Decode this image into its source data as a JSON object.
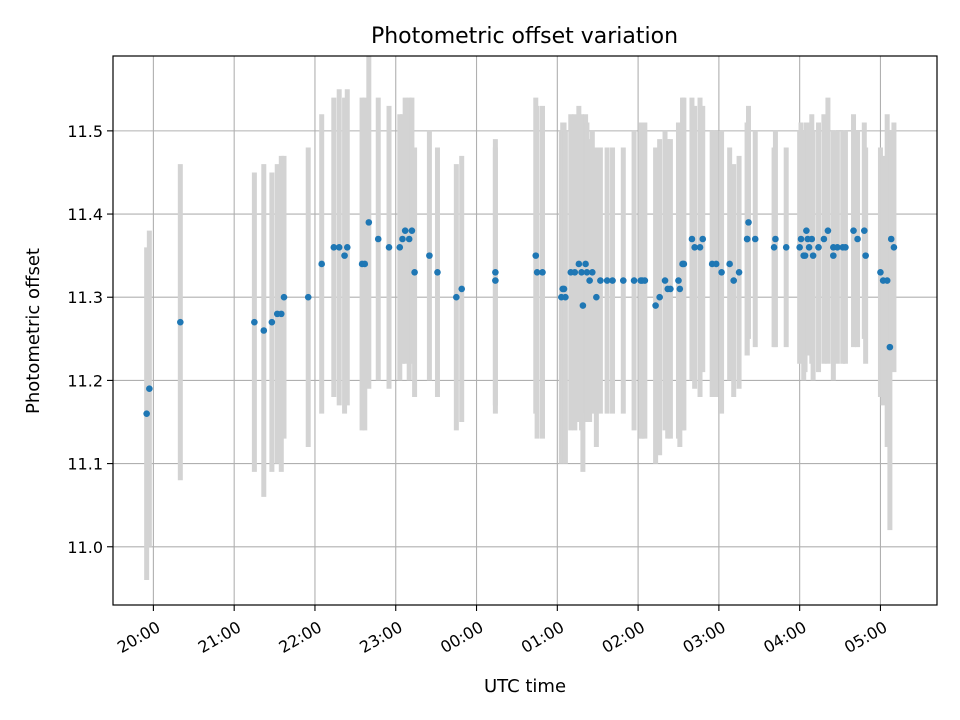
{
  "chart_data": {
    "type": "scatter",
    "title": "Photometric offset variation",
    "xlabel": "UTC time",
    "ylabel": "Photometric offset",
    "x_axis_kind": "time",
    "xlim": [
      "19:30",
      "05:42"
    ],
    "ylim": [
      10.93,
      11.59
    ],
    "grid": true,
    "x_ticks": [
      "20:00",
      "21:00",
      "22:00",
      "23:00",
      "00:00",
      "01:00",
      "02:00",
      "03:00",
      "04:00",
      "05:00"
    ],
    "y_ticks": [
      "11.0",
      "11.1",
      "11.2",
      "11.3",
      "11.4",
      "11.5"
    ],
    "colors": {
      "marker": "#1f77b4",
      "error_bar": "#d3d3d3",
      "grid": "#b0b0b0"
    },
    "series": [
      {
        "x": [
          "19:55",
          "19:57",
          "20:20",
          "21:15",
          "21:22",
          "21:28",
          "21:32",
          "21:35",
          "21:37",
          "21:55",
          "22:05",
          "22:14",
          "22:18",
          "22:22",
          "22:24",
          "22:35",
          "22:37",
          "22:40",
          "22:47",
          "22:55",
          "23:03",
          "23:05",
          "23:07",
          "23:10",
          "23:12",
          "23:14",
          "23:25",
          "23:31",
          "23:45",
          "23:49",
          "00:14",
          "00:14",
          "00:44",
          "00:45",
          "00:49",
          "01:03",
          "01:04",
          "01:05",
          "01:06",
          "01:10",
          "01:13",
          "01:16",
          "01:18",
          "01:19",
          "01:21",
          "01:22",
          "01:24",
          "01:26",
          "01:29",
          "01:32",
          "01:37",
          "01:41",
          "01:49",
          "01:57",
          "02:02",
          "02:03",
          "02:05",
          "02:13",
          "02:16",
          "02:20",
          "02:22",
          "02:24",
          "02:30",
          "02:31",
          "02:33",
          "02:34",
          "02:40",
          "02:42",
          "02:46",
          "02:48",
          "02:55",
          "02:58",
          "03:02",
          "03:08",
          "03:11",
          "03:15",
          "03:21",
          "03:21",
          "03:22",
          "03:27",
          "03:41",
          "03:42",
          "03:50",
          "04:00",
          "04:01",
          "04:03",
          "04:04",
          "04:05",
          "04:06",
          "04:07",
          "04:09",
          "04:10",
          "04:14",
          "04:18",
          "04:21",
          "04:25",
          "04:25",
          "04:28",
          "04:32",
          "04:34",
          "04:40",
          "04:43",
          "04:48",
          "04:49",
          "05:00",
          "05:02",
          "05:05",
          "05:07",
          "05:08",
          "05:10"
        ],
        "y": [
          11.16,
          11.19,
          11.27,
          11.27,
          11.26,
          11.27,
          11.28,
          11.28,
          11.3,
          11.3,
          11.34,
          11.36,
          11.36,
          11.35,
          11.36,
          11.34,
          11.34,
          11.39,
          11.37,
          11.36,
          11.36,
          11.37,
          11.38,
          11.37,
          11.38,
          11.33,
          11.35,
          11.33,
          11.3,
          11.31,
          11.32,
          11.33,
          11.35,
          11.33,
          11.33,
          11.3,
          11.31,
          11.31,
          11.3,
          11.33,
          11.33,
          11.34,
          11.33,
          11.29,
          11.34,
          11.33,
          11.32,
          11.33,
          11.3,
          11.32,
          11.32,
          11.32,
          11.32,
          11.32,
          11.32,
          11.32,
          11.32,
          11.29,
          11.3,
          11.32,
          11.31,
          11.31,
          11.32,
          11.31,
          11.34,
          11.34,
          11.37,
          11.36,
          11.36,
          11.37,
          11.34,
          11.34,
          11.33,
          11.34,
          11.32,
          11.33,
          11.37,
          11.37,
          11.39,
          11.37,
          11.36,
          11.37,
          11.36,
          11.36,
          11.37,
          11.35,
          11.35,
          11.38,
          11.37,
          11.36,
          11.37,
          11.35,
          11.36,
          11.37,
          11.38,
          11.35,
          11.36,
          11.36,
          11.36,
          11.36,
          11.38,
          11.37,
          11.38,
          11.35,
          11.33,
          11.32,
          11.32,
          11.24,
          11.37,
          11.36
        ],
        "err": [
          0.2,
          0.19,
          0.19,
          0.18,
          0.2,
          0.18,
          0.18,
          0.19,
          0.17,
          0.18,
          0.18,
          0.18,
          0.19,
          0.19,
          0.19,
          0.2,
          0.2,
          0.2,
          0.17,
          0.17,
          0.16,
          0.15,
          0.16,
          0.17,
          0.16,
          0.15,
          0.15,
          0.15,
          0.16,
          0.16,
          0.16,
          0.16,
          0.19,
          0.2,
          0.2,
          0.2,
          0.2,
          0.2,
          0.2,
          0.19,
          0.19,
          0.19,
          0.19,
          0.2,
          0.18,
          0.18,
          0.17,
          0.17,
          0.18,
          0.16,
          0.16,
          0.16,
          0.16,
          0.18,
          0.19,
          0.19,
          0.19,
          0.19,
          0.19,
          0.18,
          0.18,
          0.18,
          0.19,
          0.19,
          0.2,
          0.2,
          0.17,
          0.17,
          0.18,
          0.16,
          0.16,
          0.16,
          0.17,
          0.14,
          0.14,
          0.14,
          0.14,
          0.14,
          0.14,
          0.13,
          0.12,
          0.13,
          0.12,
          0.14,
          0.14,
          0.15,
          0.14,
          0.13,
          0.14,
          0.13,
          0.15,
          0.15,
          0.15,
          0.15,
          0.16,
          0.15,
          0.14,
          0.14,
          0.14,
          0.14,
          0.14,
          0.13,
          0.13,
          0.13,
          0.15,
          0.15,
          0.2,
          0.22,
          0.13,
          0.15
        ]
      }
    ]
  }
}
